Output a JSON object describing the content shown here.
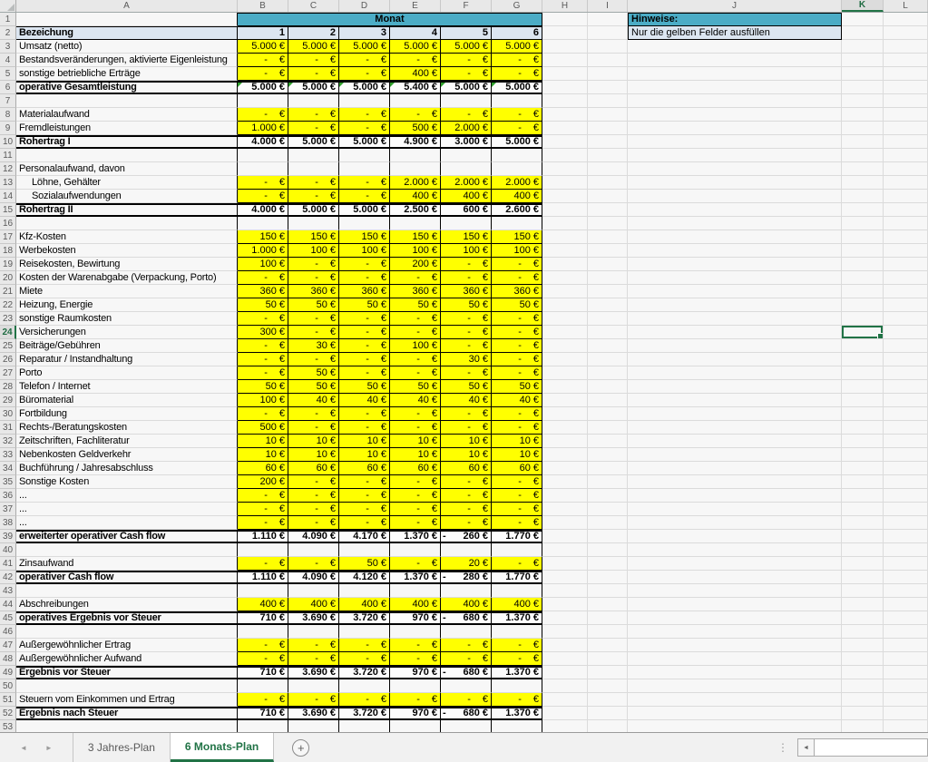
{
  "sheet_name_active": "6 Monats-Plan",
  "colors": {
    "accent_green": "#217346",
    "header_teal": "#4BACC6",
    "header_blue": "#DCE6F1",
    "input_yellow": "#FFFF00"
  },
  "hints": {
    "title": "Hinweise:",
    "text": "Nur die gelben Felder ausfüllen"
  },
  "selection": {
    "active_cell": "K24",
    "row": 24,
    "col": "K"
  },
  "tabs": {
    "sheets": [
      {
        "label": "3 Jahres-Plan",
        "active": false
      },
      {
        "label": "6 Monats-Plan",
        "active": true
      }
    ],
    "add_label": "+"
  },
  "grid": {
    "columns": [
      "A",
      "B",
      "C",
      "D",
      "E",
      "F",
      "G",
      "H",
      "I",
      "J",
      "K",
      "L"
    ],
    "monat_header": "Monat",
    "currency": "€",
    "months": [
      "1",
      "2",
      "3",
      "4",
      "5",
      "6"
    ],
    "rows": [
      {
        "n": 1,
        "type": "monat",
        "label": ""
      },
      {
        "n": 2,
        "type": "header",
        "label": "Bezeichung"
      },
      {
        "n": 3,
        "type": "input",
        "label": "Umsatz (netto)",
        "values": [
          "5.000",
          "5.000",
          "5.000",
          "5.000",
          "5.000",
          "5.000"
        ]
      },
      {
        "n": 4,
        "type": "input",
        "label": "Bestandsveränderungen, aktivierte Eigenleistung",
        "values": [
          "-",
          "-",
          "-",
          "-",
          "-",
          "-"
        ]
      },
      {
        "n": 5,
        "type": "input",
        "label": "sonstige betriebliche Erträge",
        "values": [
          "-",
          "-",
          "-",
          "400",
          "-",
          "-"
        ]
      },
      {
        "n": 6,
        "type": "total",
        "label": "operative Gesamtleistung",
        "values": [
          "5.000",
          "5.000",
          "5.000",
          "5.400",
          "5.000",
          "5.000"
        ],
        "marks": true
      },
      {
        "n": 7,
        "type": "spacer",
        "label": ""
      },
      {
        "n": 8,
        "type": "input",
        "label": "Materialaufwand",
        "values": [
          "-",
          "-",
          "-",
          "-",
          "-",
          "-"
        ]
      },
      {
        "n": 9,
        "type": "input",
        "label": "Fremdleistungen",
        "values": [
          "1.000",
          "-",
          "-",
          "500",
          "2.000",
          "-"
        ]
      },
      {
        "n": 10,
        "type": "total",
        "label": "Rohertrag I",
        "values": [
          "4.000",
          "5.000",
          "5.000",
          "4.900",
          "3.000",
          "5.000"
        ]
      },
      {
        "n": 11,
        "type": "spacer",
        "label": ""
      },
      {
        "n": 12,
        "type": "plain",
        "label": "Personalaufwand, davon"
      },
      {
        "n": 13,
        "type": "input",
        "label": "Löhne, Gehälter",
        "indent": true,
        "values": [
          "-",
          "-",
          "-",
          "2.000",
          "2.000",
          "2.000"
        ]
      },
      {
        "n": 14,
        "type": "input",
        "label": "Sozialaufwendungen",
        "indent": true,
        "values": [
          "-",
          "-",
          "-",
          "400",
          "400",
          "400"
        ]
      },
      {
        "n": 15,
        "type": "total",
        "label": "Rohertrag II",
        "values": [
          "4.000",
          "5.000",
          "5.000",
          "2.500",
          "600",
          "2.600"
        ]
      },
      {
        "n": 16,
        "type": "spacer",
        "label": ""
      },
      {
        "n": 17,
        "type": "input",
        "label": "Kfz-Kosten",
        "values": [
          "150",
          "150",
          "150",
          "150",
          "150",
          "150"
        ]
      },
      {
        "n": 18,
        "type": "input",
        "label": "Werbekosten",
        "values": [
          "1.000",
          "100",
          "100",
          "100",
          "100",
          "100"
        ]
      },
      {
        "n": 19,
        "type": "input",
        "label": "Reisekosten, Bewirtung",
        "values": [
          "100",
          "-",
          "-",
          "200",
          "-",
          "-"
        ]
      },
      {
        "n": 20,
        "type": "input",
        "label": "Kosten der Warenabgabe (Verpackung, Porto)",
        "values": [
          "-",
          "-",
          "-",
          "-",
          "-",
          "-"
        ]
      },
      {
        "n": 21,
        "type": "input",
        "label": "Miete",
        "values": [
          "360",
          "360",
          "360",
          "360",
          "360",
          "360"
        ]
      },
      {
        "n": 22,
        "type": "input",
        "label": "Heizung, Energie",
        "values": [
          "50",
          "50",
          "50",
          "50",
          "50",
          "50"
        ]
      },
      {
        "n": 23,
        "type": "input",
        "label": "sonstige Raumkosten",
        "values": [
          "-",
          "-",
          "-",
          "-",
          "-",
          "-"
        ]
      },
      {
        "n": 24,
        "type": "input",
        "label": "Versicherungen",
        "values": [
          "300",
          "-",
          "-",
          "-",
          "-",
          "-"
        ]
      },
      {
        "n": 25,
        "type": "input",
        "label": "Beiträge/Gebühren",
        "values": [
          "-",
          "30",
          "-",
          "100",
          "-",
          "-"
        ]
      },
      {
        "n": 26,
        "type": "input",
        "label": "Reparatur / Instandhaltung",
        "values": [
          "-",
          "-",
          "-",
          "-",
          "30",
          "-"
        ]
      },
      {
        "n": 27,
        "type": "input",
        "label": "Porto",
        "values": [
          "-",
          "50",
          "-",
          "-",
          "-",
          "-"
        ]
      },
      {
        "n": 28,
        "type": "input",
        "label": "Telefon / Internet",
        "values": [
          "50",
          "50",
          "50",
          "50",
          "50",
          "50"
        ]
      },
      {
        "n": 29,
        "type": "input",
        "label": "Büromaterial",
        "values": [
          "100",
          "40",
          "40",
          "40",
          "40",
          "40"
        ]
      },
      {
        "n": 30,
        "type": "input",
        "label": "Fortbildung",
        "values": [
          "-",
          "-",
          "-",
          "-",
          "-",
          "-"
        ]
      },
      {
        "n": 31,
        "type": "input",
        "label": "Rechts-/Beratungskosten",
        "values": [
          "500",
          "-",
          "-",
          "-",
          "-",
          "-"
        ]
      },
      {
        "n": 32,
        "type": "input",
        "label": "Zeitschriften, Fachliteratur",
        "values": [
          "10",
          "10",
          "10",
          "10",
          "10",
          "10"
        ]
      },
      {
        "n": 33,
        "type": "input",
        "label": "Nebenkosten Geldverkehr",
        "values": [
          "10",
          "10",
          "10",
          "10",
          "10",
          "10"
        ]
      },
      {
        "n": 34,
        "type": "input",
        "label": "Buchführung / Jahresabschluss",
        "values": [
          "60",
          "60",
          "60",
          "60",
          "60",
          "60"
        ]
      },
      {
        "n": 35,
        "type": "input",
        "label": "Sonstige Kosten",
        "values": [
          "200",
          "-",
          "-",
          "-",
          "-",
          "-"
        ]
      },
      {
        "n": 36,
        "type": "input",
        "label": "...",
        "values": [
          "-",
          "-",
          "-",
          "-",
          "-",
          "-"
        ]
      },
      {
        "n": 37,
        "type": "input",
        "label": "...",
        "values": [
          "-",
          "-",
          "-",
          "-",
          "-",
          "-"
        ]
      },
      {
        "n": 38,
        "type": "input",
        "label": "...",
        "values": [
          "-",
          "-",
          "-",
          "-",
          "-",
          "-"
        ]
      },
      {
        "n": 39,
        "type": "total",
        "label": "erweiterter operativer Cash flow",
        "values": [
          "1.110",
          "4.090",
          "4.170",
          "1.370",
          "-260",
          "1.770"
        ]
      },
      {
        "n": 40,
        "type": "spacer",
        "label": ""
      },
      {
        "n": 41,
        "type": "input",
        "label": "Zinsaufwand",
        "values": [
          "-",
          "-",
          "50",
          "-",
          "20",
          "-"
        ]
      },
      {
        "n": 42,
        "type": "total",
        "label": "operativer Cash flow",
        "values": [
          "1.110",
          "4.090",
          "4.120",
          "1.370",
          "-280",
          "1.770"
        ]
      },
      {
        "n": 43,
        "type": "spacer",
        "label": ""
      },
      {
        "n": 44,
        "type": "input",
        "label": "Abschreibungen",
        "values": [
          "400",
          "400",
          "400",
          "400",
          "400",
          "400"
        ]
      },
      {
        "n": 45,
        "type": "total",
        "label": "operatives Ergebnis vor Steuer",
        "values": [
          "710",
          "3.690",
          "3.720",
          "970",
          "-680",
          "1.370"
        ]
      },
      {
        "n": 46,
        "type": "spacer",
        "label": ""
      },
      {
        "n": 47,
        "type": "input",
        "label": "Außergewöhnlicher Ertrag",
        "values": [
          "-",
          "-",
          "-",
          "-",
          "-",
          "-"
        ]
      },
      {
        "n": 48,
        "type": "input",
        "label": "Außergewöhnlicher Aufwand",
        "values": [
          "-",
          "-",
          "-",
          "-",
          "-",
          "-"
        ]
      },
      {
        "n": 49,
        "type": "total",
        "label": "Ergebnis vor Steuer",
        "values": [
          "710",
          "3.690",
          "3.720",
          "970",
          "-680",
          "1.370"
        ]
      },
      {
        "n": 50,
        "type": "spacer",
        "label": ""
      },
      {
        "n": 51,
        "type": "input",
        "label": "Steuern vom Einkommen und Ertrag",
        "values": [
          "-",
          "-",
          "-",
          "-",
          "-",
          "-"
        ]
      },
      {
        "n": 52,
        "type": "total",
        "label": "Ergebnis nach Steuer",
        "values": [
          "710",
          "3.690",
          "3.720",
          "970",
          "-680",
          "1.370"
        ]
      },
      {
        "n": 53,
        "type": "spacer",
        "label": ""
      }
    ]
  }
}
